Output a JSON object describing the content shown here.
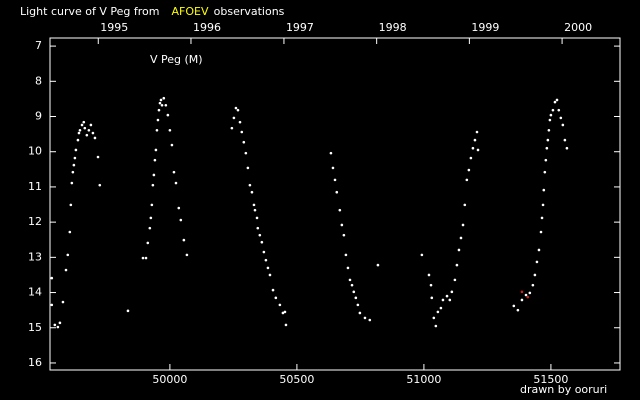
{
  "chart_data": {
    "type": "scatter",
    "title": "Light curve of V Peg from",
    "title_highlight": "AFOEV",
    "title_end": "observations",
    "title_highlight_color": "#ffff00",
    "annotation": "V Peg (M)",
    "credit": "drawn by ooruri",
    "credit_color": "#33cccc",
    "xlim": [
      49528,
      51772
    ],
    "xticks": [
      50000,
      50500,
      51000,
      51500
    ],
    "x2ticks": [
      {
        "value": 49718,
        "label": "1995"
      },
      {
        "value": 50083,
        "label": "1996"
      },
      {
        "value": 50449,
        "label": "1997"
      },
      {
        "value": 50814,
        "label": "1998"
      },
      {
        "value": 51179,
        "label": "1999"
      },
      {
        "value": 51544,
        "label": "2000"
      }
    ],
    "ylim": [
      6.77,
      16.2
    ],
    "y_inverted": true,
    "yticks": [
      7,
      8,
      9,
      10,
      11,
      12,
      13,
      14,
      15,
      16
    ],
    "series": [
      {
        "color": "#ffffff",
        "x": [
          49535,
          49535,
          49547,
          49559,
          49567,
          49579,
          49591,
          49598,
          49606,
          49610,
          49614,
          49618,
          49622,
          49626,
          49630,
          49638,
          49642,
          49646,
          49654,
          49661,
          49665,
          49673,
          49681,
          49689,
          49697,
          49705,
          49717,
          49724,
          49835,
          49894,
          49906,
          49913,
          49921,
          49925,
          49929,
          49933,
          49937,
          49941,
          49945,
          49949,
          49953,
          49957,
          49961,
          49965,
          49969,
          49976,
          49984,
          49992,
          50000,
          50008,
          50016,
          50024,
          50035,
          50043,
          50055,
          50067,
          50244,
          50252,
          50260,
          50268,
          50276,
          50283,
          50291,
          50299,
          50307,
          50315,
          50323,
          50331,
          50335,
          50343,
          50346,
          50354,
          50362,
          50370,
          50378,
          50386,
          50394,
          50406,
          50417,
          50433,
          50445,
          50453,
          50457,
          50634,
          50642,
          50650,
          50657,
          50669,
          50677,
          50685,
          50693,
          50701,
          50709,
          50717,
          50724,
          50732,
          50740,
          50748,
          50768,
          50787,
          50819,
          50992,
          51020,
          51028,
          51031,
          51039,
          51047,
          51055,
          51067,
          51075,
          51091,
          51102,
          51110,
          51122,
          51130,
          51138,
          51146,
          51154,
          51161,
          51169,
          51177,
          51185,
          51193,
          51201,
          51209,
          51213,
          51354,
          51370,
          51386,
          51402,
          51417,
          51429,
          51437,
          51445,
          51453,
          51461,
          51465,
          51469,
          51472,
          51476,
          51480,
          51484,
          51488,
          51492,
          51496,
          51500,
          51508,
          51516,
          51524,
          51531,
          51539,
          51547,
          51555,
          51563
        ],
        "y": [
          13.59,
          14.35,
          14.92,
          14.98,
          14.86,
          14.27,
          13.36,
          12.93,
          12.28,
          11.51,
          10.89,
          10.58,
          10.38,
          10.18,
          9.95,
          9.67,
          9.47,
          9.39,
          9.24,
          9.16,
          9.33,
          9.53,
          9.39,
          9.24,
          9.47,
          9.61,
          10.15,
          10.95,
          14.52,
          13.02,
          13.02,
          12.59,
          12.17,
          11.88,
          11.51,
          10.95,
          10.66,
          10.24,
          9.95,
          9.39,
          9.1,
          8.82,
          8.62,
          8.53,
          8.68,
          8.48,
          8.68,
          8.96,
          9.39,
          9.81,
          10.58,
          10.89,
          11.6,
          11.94,
          12.51,
          12.93,
          9.33,
          9.04,
          8.76,
          8.82,
          9.16,
          9.44,
          9.73,
          10.04,
          10.46,
          10.95,
          11.15,
          11.51,
          11.66,
          11.88,
          12.17,
          12.37,
          12.57,
          12.85,
          13.08,
          13.3,
          13.5,
          13.93,
          14.15,
          14.35,
          14.58,
          14.55,
          14.92,
          10.04,
          10.46,
          10.8,
          11.15,
          11.66,
          12.08,
          12.37,
          12.93,
          13.3,
          13.64,
          13.79,
          13.98,
          14.15,
          14.35,
          14.58,
          14.72,
          14.78,
          13.22,
          12.93,
          13.5,
          13.79,
          14.15,
          14.72,
          14.95,
          14.55,
          14.44,
          14.21,
          14.1,
          14.21,
          13.98,
          13.64,
          13.22,
          12.79,
          12.45,
          12.08,
          11.51,
          10.8,
          10.52,
          10.18,
          9.9,
          9.67,
          9.44,
          9.95,
          14.38,
          14.5,
          14.21,
          14.07,
          14.01,
          13.79,
          13.5,
          13.13,
          12.79,
          12.28,
          11.88,
          11.51,
          11.09,
          10.58,
          10.24,
          9.9,
          9.67,
          9.39,
          9.1,
          8.96,
          8.82,
          8.59,
          8.53,
          8.82,
          9.04,
          9.24,
          9.67,
          9.9
        ]
      },
      {
        "color": "#cc2222",
        "x": [
          51386,
          51409
        ],
        "y": [
          13.98,
          14.13
        ]
      }
    ]
  }
}
